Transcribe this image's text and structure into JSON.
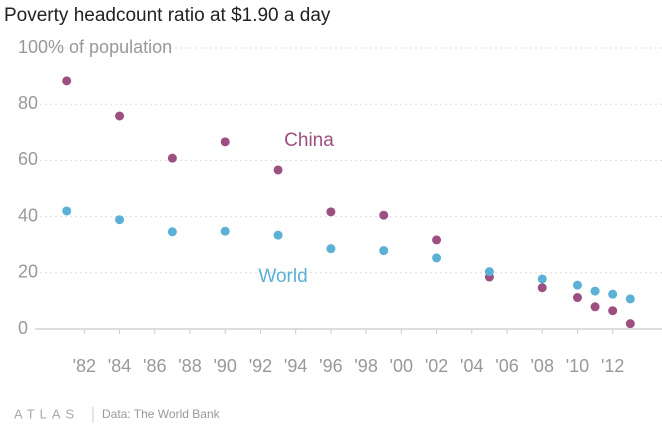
{
  "chart_data": {
    "type": "scatter",
    "title": "Poverty headcount ratio at $1.90 a day",
    "x": [
      1981,
      1984,
      1987,
      1990,
      1993,
      1996,
      1999,
      2002,
      2005,
      2008,
      2010,
      2011,
      2012,
      2013
    ],
    "series": [
      {
        "name": "China",
        "color": "#9c4f80",
        "values": [
          88.3,
          75.8,
          60.8,
          66.6,
          56.6,
          41.7,
          40.5,
          31.7,
          18.5,
          14.7,
          11.2,
          7.9,
          6.5,
          1.9
        ]
      },
      {
        "name": "World",
        "color": "#5ab1d5",
        "values": [
          42.0,
          38.9,
          34.6,
          34.8,
          33.4,
          28.6,
          27.9,
          25.3,
          20.4,
          17.8,
          15.6,
          13.5,
          12.4,
          10.7
        ]
      }
    ],
    "xlim": [
      1979.2,
      2014.8
    ],
    "xticks": [
      {
        "value": 1982,
        "label": "'82"
      },
      {
        "value": 1984,
        "label": "'84"
      },
      {
        "value": 1986,
        "label": "'86"
      },
      {
        "value": 1988,
        "label": "'88"
      },
      {
        "value": 1990,
        "label": "'90"
      },
      {
        "value": 1992,
        "label": "'92"
      },
      {
        "value": 1994,
        "label": "'94"
      },
      {
        "value": 1996,
        "label": "'96"
      },
      {
        "value": 1998,
        "label": "'98"
      },
      {
        "value": 2000,
        "label": "'00"
      },
      {
        "value": 2002,
        "label": "'02"
      },
      {
        "value": 2004,
        "label": "'04"
      },
      {
        "value": 2006,
        "label": "'06"
      },
      {
        "value": 2008,
        "label": "'08"
      },
      {
        "value": 2010,
        "label": "'10"
      },
      {
        "value": 2012,
        "label": "'12"
      }
    ],
    "ylim": [
      0,
      100
    ],
    "yticks": [
      0,
      20,
      40,
      60,
      80,
      {
        "value": 100,
        "label": "100% of population"
      }
    ],
    "grid": true
  },
  "footer": {
    "brand": "ATLAS",
    "source": "Data:  The World Bank"
  }
}
